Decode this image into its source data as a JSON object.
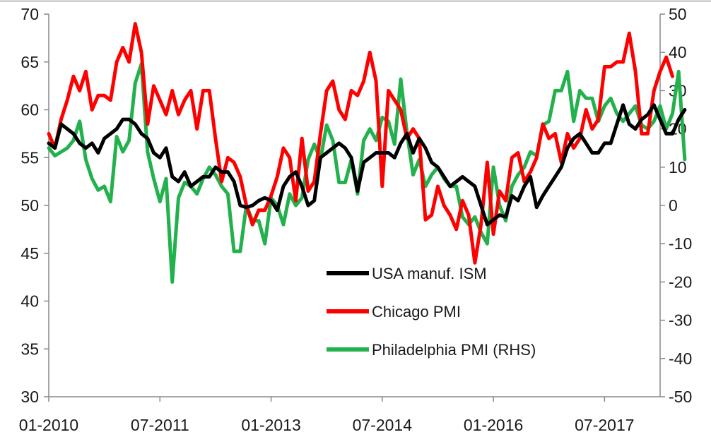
{
  "chart_data": {
    "type": "line",
    "title": "",
    "xlabel": "",
    "ylabel": "",
    "x_ticks": [
      "01-2010",
      "07-2011",
      "01-2013",
      "07-2014",
      "01-2016",
      "07-2017"
    ],
    "y_left": {
      "ticks": [
        "30",
        "35",
        "40",
        "45",
        "50",
        "55",
        "60",
        "65",
        "70"
      ],
      "ylim": [
        30,
        70
      ]
    },
    "y_right": {
      "ticks": [
        "-50",
        "-40",
        "-30",
        "-20",
        "-10",
        "0",
        "10",
        "20",
        "30",
        "40",
        "50"
      ],
      "ylim": [
        -50,
        50
      ]
    },
    "x_range": [
      "2010-01",
      "2018-04"
    ],
    "grid": false,
    "legend_position": "center-right",
    "series": [
      {
        "name": "USA manuf. ISM",
        "axis": "left",
        "color": "#000000",
        "start": "2010-01",
        "values": [
          56.5,
          56.0,
          58.5,
          58.0,
          57.5,
          56.5,
          56.0,
          56.5,
          55.5,
          57.0,
          57.5,
          58.0,
          59.0,
          59.0,
          58.5,
          57.5,
          57.0,
          55.5,
          55.0,
          56.0,
          53.0,
          52.5,
          53.5,
          52.0,
          52.5,
          53.0,
          53.0,
          54.0,
          53.5,
          53.5,
          52.5,
          50.0,
          49.8,
          50.0,
          50.5,
          50.8,
          50.5,
          49.5,
          52.0,
          53.0,
          53.5,
          52.0,
          50.0,
          50.5,
          55.0,
          55.5,
          56.0,
          56.5,
          56.0,
          55.0,
          51.5,
          54.5,
          55.0,
          55.5,
          55.5,
          55.5,
          55.0,
          56.5,
          57.5,
          55.5,
          57.0,
          56.0,
          54.5,
          54.0,
          53.0,
          52.0,
          52.5,
          53.0,
          52.5,
          52.0,
          50.0,
          48.0,
          48.5,
          49.0,
          48.8,
          51.0,
          50.5,
          52.0,
          53.0,
          49.8,
          51.0,
          52.0,
          53.0,
          54.0,
          56.0,
          57.0,
          57.5,
          56.5,
          55.5,
          55.5,
          56.5,
          56.5,
          58.5,
          60.5,
          58.5,
          58.0,
          59.0,
          59.5,
          60.5,
          59.0,
          57.5,
          57.5,
          59.0,
          60.0
        ],
        "values_note": "monthly"
      },
      {
        "name": "Chicago PMI",
        "axis": "left",
        "color": "#ff0000",
        "start": "2010-01",
        "values": [
          57.5,
          56.0,
          59.0,
          61.0,
          63.5,
          62.0,
          64.0,
          60.0,
          61.5,
          61.5,
          61.0,
          65.0,
          66.5,
          65.0,
          69.0,
          66.0,
          58.5,
          62.5,
          61.0,
          59.5,
          62.0,
          59.5,
          61.0,
          62.0,
          58.0,
          62.0,
          62.0,
          57.0,
          52.5,
          55.0,
          54.5,
          53.0,
          50.0,
          48.0,
          49.5,
          49.5,
          51.0,
          53.0,
          56.0,
          55.0,
          50.5,
          57.0,
          51.5,
          52.5,
          57.5,
          62.0,
          63.0,
          60.0,
          59.0,
          62.0,
          61.5,
          63.0,
          66.0,
          63.0,
          52.0,
          62.0,
          61.0,
          60.0,
          57.0,
          58.0,
          57.0,
          48.5,
          49.0,
          52.0,
          50.0,
          49.0,
          47.5,
          50.5,
          49.0,
          44.0,
          48.0,
          54.5,
          47.0,
          51.5,
          50.5,
          55.0,
          55.5,
          52.5,
          53.5,
          55.0,
          58.5,
          57.0,
          57.5,
          54.5,
          57.5,
          56.0,
          57.0,
          60.0,
          58.0,
          59.0,
          64.5,
          64.5,
          65.0,
          65.0,
          68.0,
          64.0,
          57.5,
          57.5,
          62.0,
          64.0,
          65.5,
          63.5
        ]
      },
      {
        "name": "Philadelphia PMI (RHS)",
        "axis": "right",
        "color": "#22b14c",
        "start": "2010-01",
        "values": [
          15,
          13,
          14,
          15,
          17,
          22,
          12,
          7,
          4,
          5,
          1,
          18,
          14,
          17,
          32,
          37,
          14,
          7,
          1,
          7,
          -20,
          2,
          6,
          5,
          3,
          7,
          10,
          8,
          5,
          3,
          -12,
          -12,
          0,
          -4,
          -4,
          -10,
          2,
          0,
          -5,
          3,
          0,
          2,
          12,
          16,
          12,
          21,
          17,
          6,
          6,
          12,
          3,
          17,
          20,
          17,
          23,
          22,
          16,
          33,
          19,
          8,
          12,
          5,
          8,
          10,
          7,
          5,
          5,
          -3,
          -5,
          -3,
          -7,
          -10,
          10,
          0,
          -4,
          5,
          8,
          10,
          14,
          13,
          21,
          22,
          30,
          30,
          35,
          22,
          30,
          28,
          28,
          22,
          26,
          28,
          24,
          22,
          24,
          26,
          21,
          20,
          22,
          26,
          20,
          24,
          35,
          12
        ]
      }
    ]
  }
}
